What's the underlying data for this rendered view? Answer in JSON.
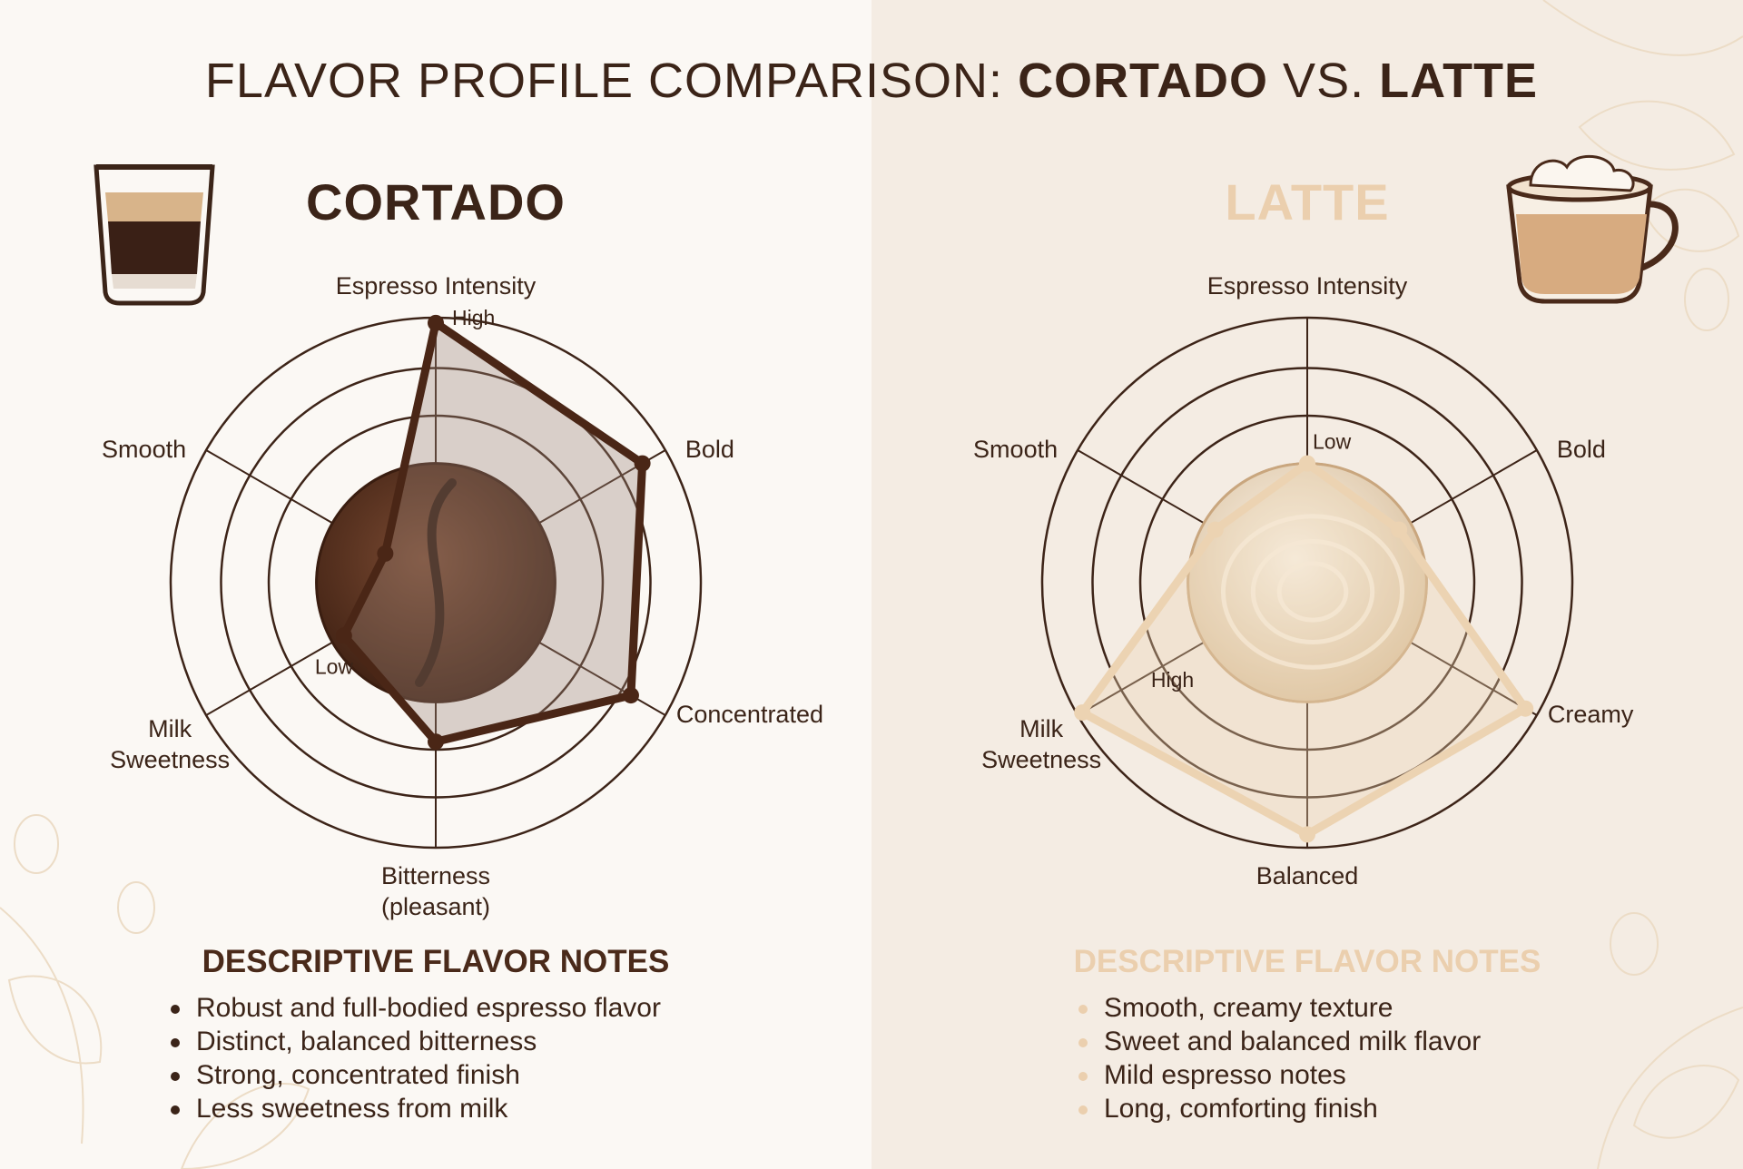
{
  "title": {
    "prefix": "FLAVOR PROFILE COMPARISON: ",
    "first": "CORTADO",
    "middle": " VS. ",
    "second": "LATTE"
  },
  "colors": {
    "cortado": "#4a2616",
    "latte": "#ecd3b2",
    "ring": "#3d2418",
    "background_left": "#fbf8f4",
    "background_right": "#f4ece3"
  },
  "chart_data": [
    {
      "type": "radar",
      "name": "CORTADO",
      "axes": [
        "Espresso Intensity",
        "Bold",
        "Concentrated",
        "Bitterness\n(pleasant)",
        "Milk\nSweetness",
        "Smooth"
      ],
      "values": [
        0.98,
        0.9,
        0.85,
        0.6,
        0.4,
        0.22
      ],
      "scale_labels": {
        "high": "High",
        "low": "Low"
      },
      "center_image": "coffee-bean"
    },
    {
      "type": "radar",
      "name": "LATTE",
      "axes": [
        "Espresso Intensity",
        "Bold",
        "Creamy",
        "Balanced",
        "Milk\nSweetness",
        "Smooth"
      ],
      "values": [
        0.45,
        0.4,
        0.95,
        0.95,
        0.98,
        0.4
      ],
      "scale_labels": {
        "high": "High",
        "low": "Low"
      },
      "center_image": "latte-foam"
    }
  ],
  "cortado_notes": {
    "title": "DESCRIPTIVE FLAVOR NOTES",
    "items": [
      "Robust and full-bodied espresso flavor",
      "Distinct, balanced bitterness",
      "Strong, concentrated finish",
      "Less sweetness from milk"
    ]
  },
  "latte_notes": {
    "title": "DESCRIPTIVE FLAVOR NOTES",
    "items": [
      "Smooth, creamy texture",
      "Sweet and balanced milk flavor",
      "Mild espresso notes",
      "Long, comforting finish"
    ]
  },
  "icons": {
    "cortado": "cortado-glass-icon",
    "latte": "latte-cup-icon",
    "decoration": "coffee-leaf-icon"
  }
}
